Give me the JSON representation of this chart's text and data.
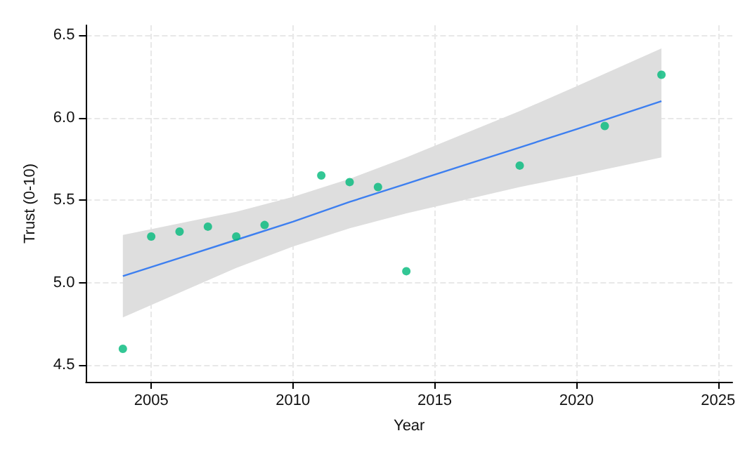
{
  "chart_data": {
    "type": "scatter",
    "xlabel": "Year",
    "ylabel": "Trust (0-10)",
    "xlim": [
      2002.7,
      2025.5
    ],
    "xticks": [
      2005,
      2010,
      2015,
      2020,
      2025
    ],
    "ylim": [
      4.4,
      6.56
    ],
    "yticks": [
      4.5,
      {
        "value": 5,
        "label": "5.0"
      },
      5.5,
      {
        "value": 6,
        "label": "6.0"
      },
      6.5
    ],
    "grid": true,
    "series": [
      {
        "color": "#00b97a",
        "marker": "circle",
        "x": [
          2004,
          2005,
          2006,
          2007,
          2008,
          2009,
          2011,
          2012,
          2013,
          2014,
          2018,
          2021,
          2023
        ],
        "values": [
          4.6,
          5.28,
          5.31,
          5.34,
          5.28,
          5.35,
          5.65,
          5.61,
          5.58,
          5.07,
          5.71,
          5.95,
          6.26
        ]
      },
      {
        "type": "line",
        "marker": "none",
        "color": "#3d7ff0",
        "line_style": "solid",
        "x": [
          2004,
          2006,
          2008,
          2010,
          2012,
          2014,
          2016,
          2018,
          2020,
          2023
        ],
        "values": [
          5.04,
          5.15,
          5.26,
          5.37,
          5.49,
          5.6,
          5.71,
          5.82,
          5.93,
          6.1
        ],
        "lower": [
          4.79,
          4.94,
          5.09,
          5.22,
          5.33,
          5.42,
          5.5,
          5.58,
          5.65,
          5.76
        ],
        "upper": [
          5.29,
          5.36,
          5.43,
          5.52,
          5.63,
          5.76,
          5.9,
          6.04,
          6.19,
          6.42
        ]
      }
    ]
  }
}
